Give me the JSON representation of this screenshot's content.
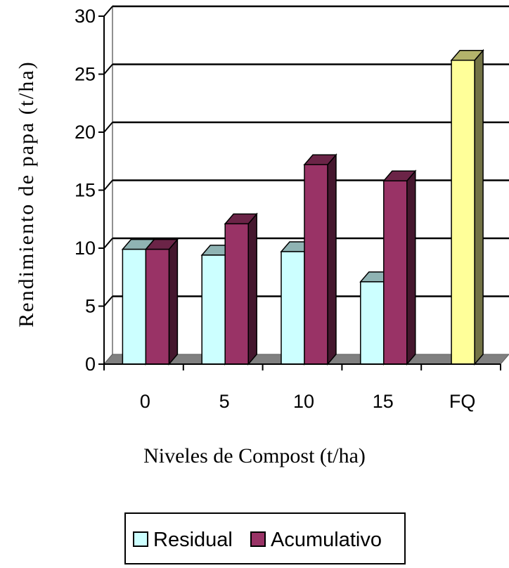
{
  "chart_data": {
    "type": "bar",
    "style": "3d-clustered-column",
    "categories": [
      "0",
      "5",
      "10",
      "15",
      "FQ"
    ],
    "series": [
      {
        "name": "Residual",
        "values": [
          9.9,
          9.4,
          9.7,
          7.1,
          null
        ],
        "color": "#ccffff"
      },
      {
        "name": "Acumulativo",
        "values": [
          9.9,
          12.1,
          17.2,
          15.8,
          null
        ],
        "color": "#993366"
      }
    ],
    "extra_bar": {
      "category": "FQ",
      "value": 26.2,
      "color": "#ffff99"
    },
    "xlabel": "Niveles de Compost (t/ha)",
    "ylabel": "Rendimiento de papa (t/ha)",
    "ylim": [
      0,
      30
    ],
    "yticks": [
      0,
      5,
      10,
      15,
      20,
      25,
      30
    ],
    "grid": true,
    "legend_position": "bottom"
  }
}
